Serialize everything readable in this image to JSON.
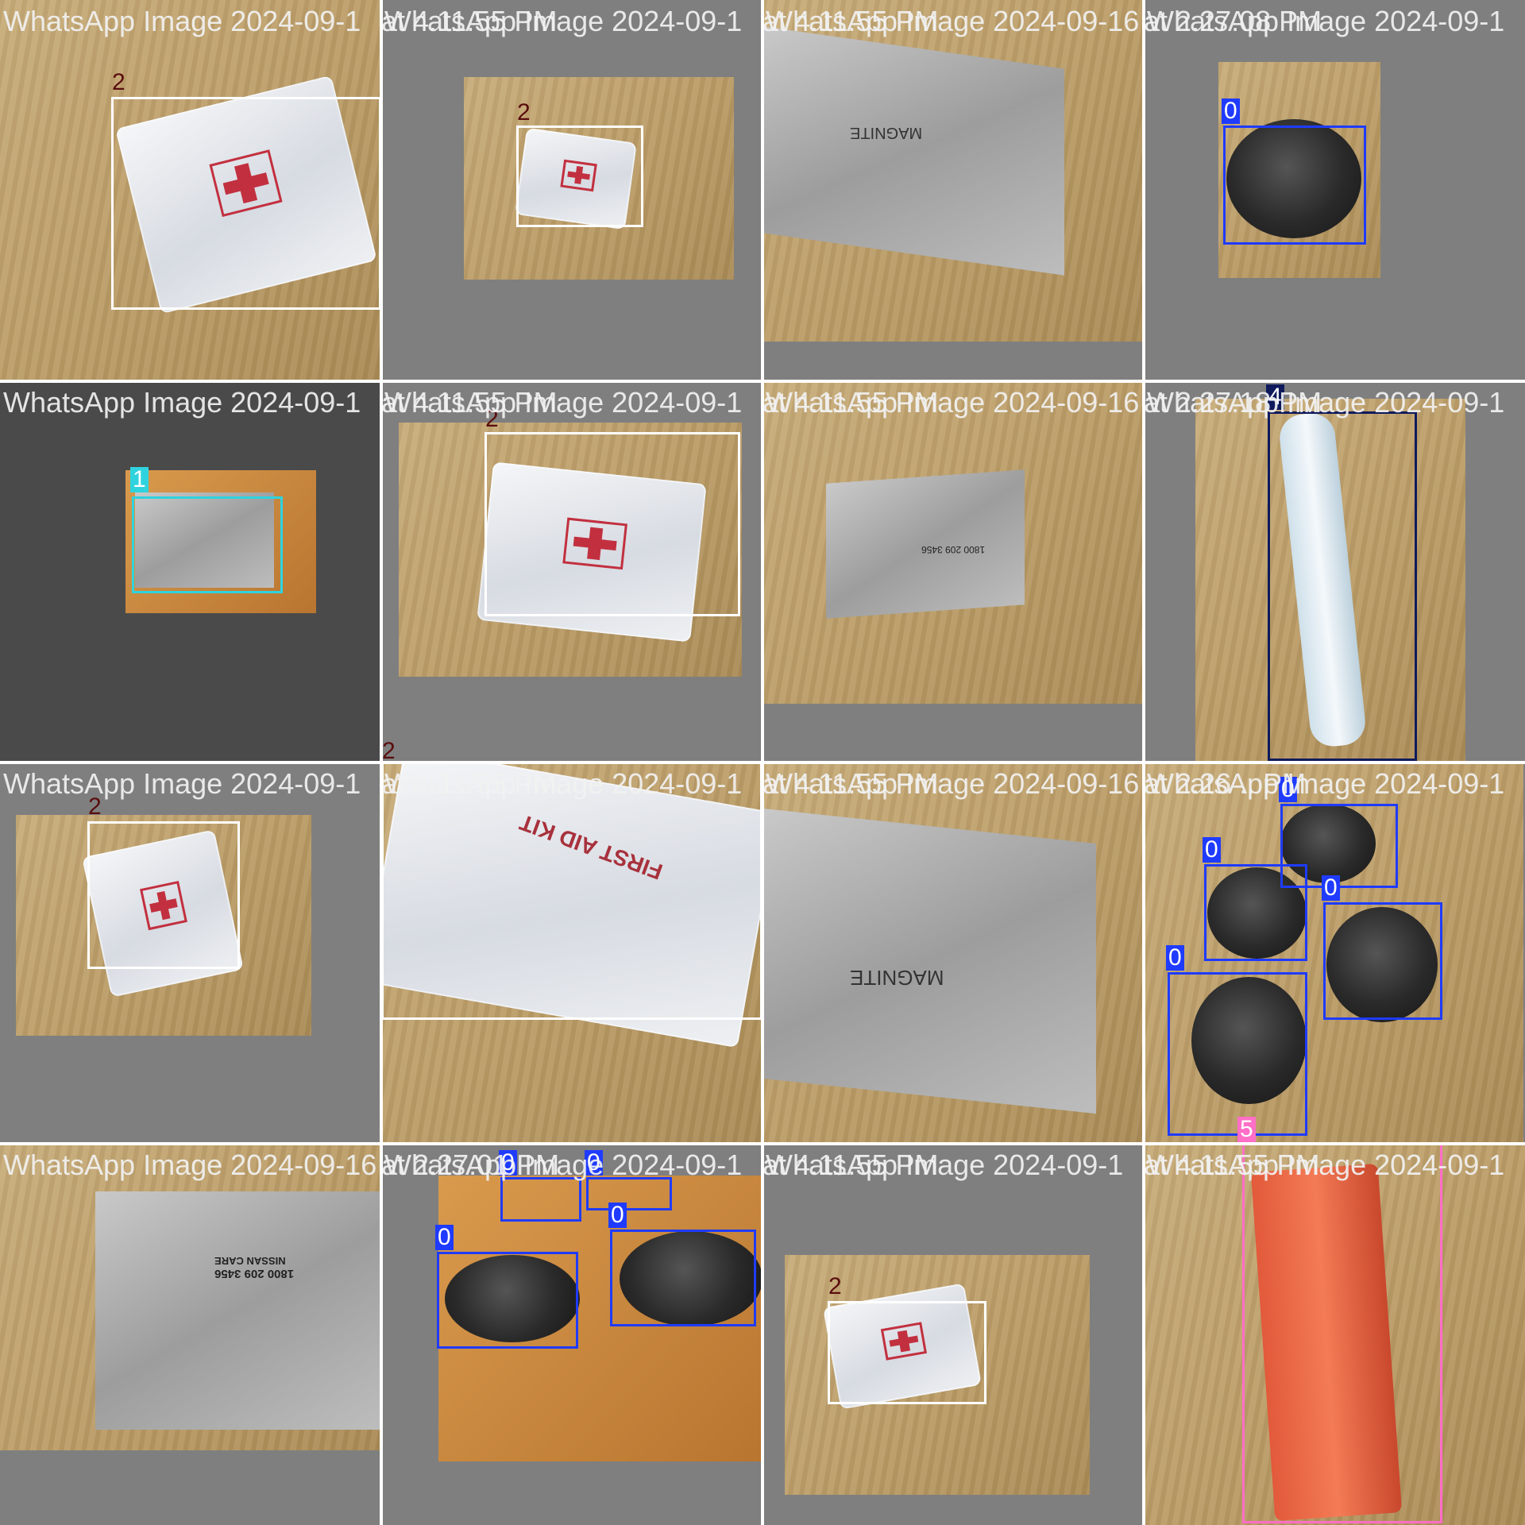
{
  "tile_titles": {
    "t00": "WhatsApp Image 2024-09-1",
    "t01": "WhatsApp Image 2024-09-1",
    "t02": "WhatsApp Image 2024-09-16",
    "t03": "WhatsApp Image 2024-09-1",
    "t10": "WhatsApp Image 2024-09-1",
    "t11": "WhatsApp Image 2024-09-1",
    "t12": "WhatsApp Image 2024-09-16",
    "t13": "WhatsApp Image 2024-09-1",
    "t20": "WhatsApp Image 2024-09-1",
    "t21": "WhatsApp Image 2024-09-1",
    "t22": "WhatsApp Image 2024-09-16",
    "t23": "WhatsApp Image 2024-09-1",
    "t30": "WhatsApp Image 2024-09-16",
    "t31": "WhatsApp Image 2024-09-1",
    "t32": "WhatsApp Image 2024-09-1",
    "t33": "WhatsApp Image 2024-09-1"
  },
  "overlap_titles": {
    "o01": "at 4.11.55 PM",
    "o02": "at 4.11.55 PM",
    "o03": "at 2.27.08 PM",
    "o11": "at 4.11.55 PM",
    "o12": "at 4.11.55 PM",
    "o13": "at 2.27.18 PM",
    "o21": "at 4.11.55 PM",
    "o22": "at 4.11.55 PM",
    "o23": "at 2.26 .. PM",
    "o31": "at 2.27.01 PM",
    "o32": "at 4.11.55 PM",
    "o33": "at 4.11.55 PM"
  },
  "class_colors": {
    "0": "#1f3bff",
    "1": "#2fd3de",
    "2": "#ffffff",
    "4": "#0e1a5c",
    "5": "#ff6ec7"
  },
  "tag_label_colors": {
    "0": "#ffffff",
    "1": "#ffffff",
    "2": "#5a0d0d",
    "4": "#ffffff",
    "5": "#ffffff"
  },
  "labels": {
    "t00_a": "2",
    "t01_a": "2",
    "t03_a": "0",
    "t10_a": "1",
    "t11_a": "2",
    "t13_a": "4",
    "t21_top": "2",
    "t20_a": "2",
    "t23_a": "0",
    "t23_b": "0",
    "t23_c": "0",
    "t23_d": "0",
    "t23_e": "5",
    "t31_a": "0",
    "t31_b": "0",
    "t31_c": "0",
    "t31_d": "0",
    "t32_a": "2"
  },
  "print_text": {
    "manual_brand": "MAGNITE",
    "manual_phone": "1800 209 3456",
    "manual_care": "NISSAN CARE",
    "pack_text": "FIRST AID KIT"
  }
}
